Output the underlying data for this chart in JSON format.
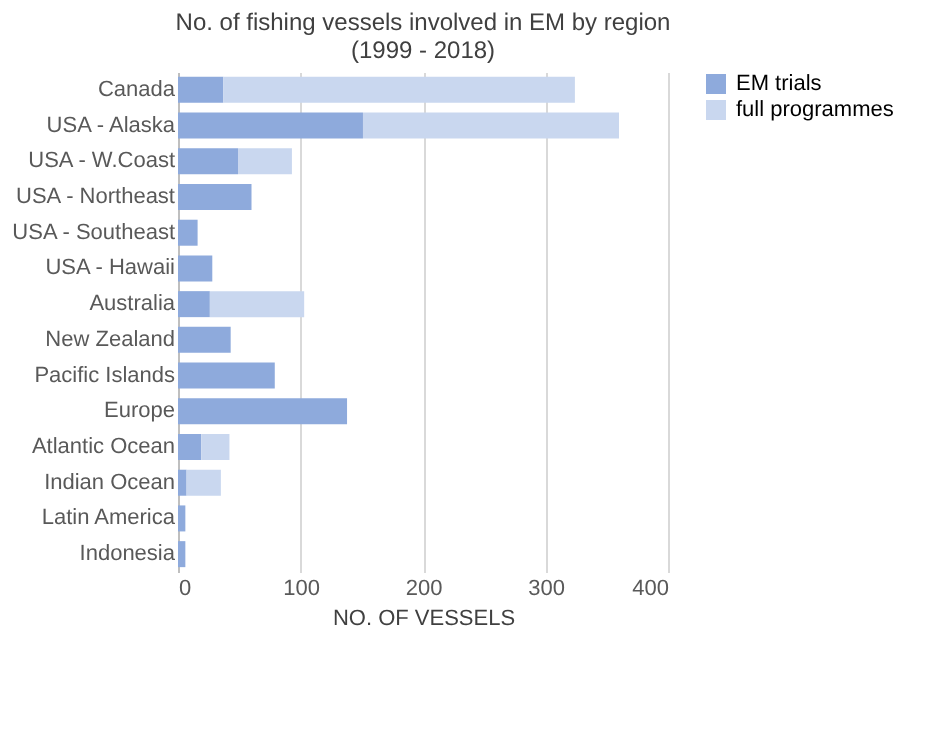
{
  "chart_data": {
    "type": "bar",
    "orientation": "horizontal",
    "stacked": true,
    "title": [
      "No. of fishing vessels involved in EM by region",
      "(1999 - 2018)"
    ],
    "xlabel": "NO. OF VESSELS",
    "categories": [
      "Canada",
      "USA - Alaska",
      "USA - W.Coast",
      "USA - Northeast",
      "USA - Southeast",
      "USA - Hawaii",
      "Australia",
      "New Zealand",
      "Pacific Islands",
      "Europe",
      "Atlantic Ocean",
      "Indian Ocean",
      "Latin America",
      "Indonesia"
    ],
    "series": [
      {
        "name": "EM trials",
        "color": "#8eaadc",
        "values": [
          37,
          151,
          49,
          60,
          16,
          28,
          26,
          43,
          79,
          138,
          19,
          7,
          6,
          6
        ]
      },
      {
        "name": "full programmes",
        "color": "#c9d7ef",
        "values": [
          287,
          209,
          44,
          null,
          null,
          null,
          77,
          null,
          null,
          null,
          23,
          28,
          null,
          null
        ]
      }
    ],
    "xlim": [
      0,
      400
    ],
    "xticks": [
      0,
      100,
      200,
      300,
      400
    ],
    "grid": "x",
    "legend": "right"
  }
}
